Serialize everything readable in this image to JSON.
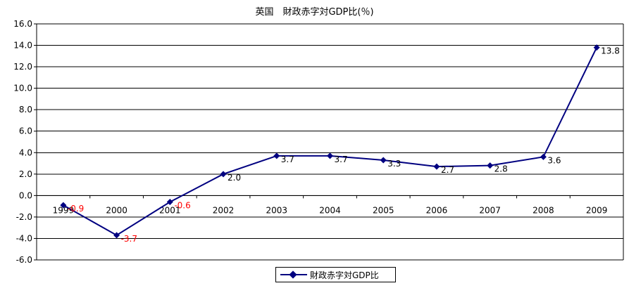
{
  "title": "英国　財政赤字対GDP比(％)",
  "chart_data": {
    "type": "line",
    "title": "英国　財政赤字対GDP比(％)",
    "categories": [
      "1999",
      "2000",
      "2001",
      "2002",
      "2003",
      "2004",
      "2005",
      "2006",
      "2007",
      "2008",
      "2009"
    ],
    "series": [
      {
        "name": "財政赤字対GDP比",
        "values": [
          -0.9,
          -3.7,
          -0.6,
          2.0,
          3.7,
          3.7,
          3.3,
          2.7,
          2.8,
          3.6,
          13.8
        ],
        "labels": [
          "-0.9",
          "-3.7",
          "-0.6",
          "2.0",
          "3.7",
          "3.7",
          "3.3",
          "2.7",
          "2.8",
          "3.6",
          "13.8"
        ]
      }
    ],
    "ylim": [
      -6.0,
      16.0
    ],
    "yticks": [
      "16.0",
      "14.0",
      "12.0",
      "10.0",
      "8.0",
      "6.0",
      "4.0",
      "2.0",
      "0.0",
      "-2.0",
      "-4.0",
      "-6.0"
    ],
    "grid": true,
    "legend": "bottom",
    "colors": {
      "line": "#000080",
      "negative_label": "#ff0000",
      "positive_label": "#000000"
    }
  }
}
